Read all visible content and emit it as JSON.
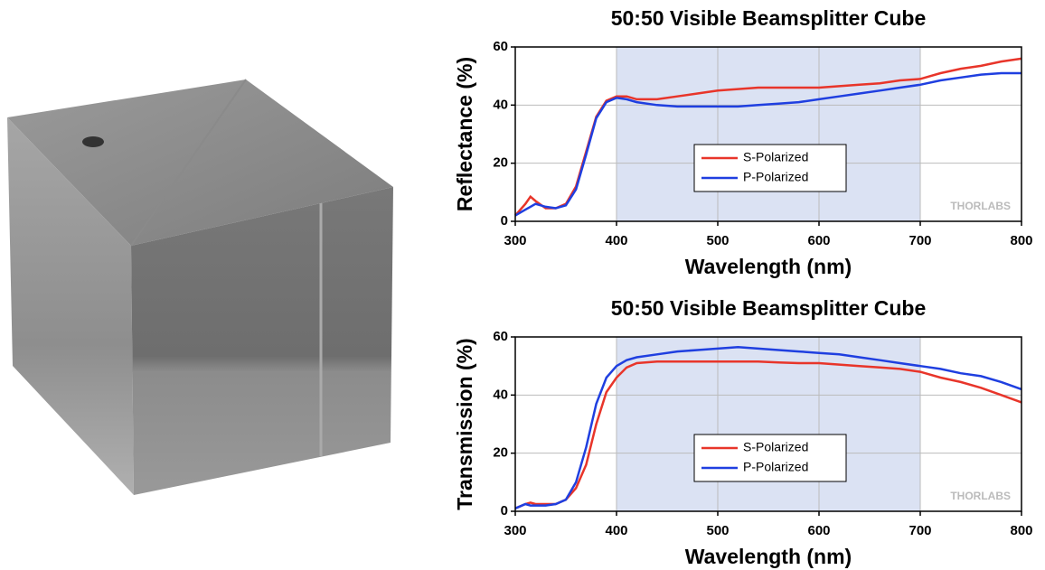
{
  "chart_data": [
    {
      "type": "line",
      "title": "50:50 Visible Beamsplitter Cube",
      "x_label": "Wavelength (nm)",
      "y_label": "Reflectance (%)",
      "x": [
        300,
        310,
        315,
        320,
        330,
        340,
        350,
        360,
        370,
        380,
        390,
        400,
        410,
        420,
        440,
        460,
        480,
        500,
        520,
        540,
        560,
        580,
        600,
        620,
        640,
        660,
        680,
        700,
        720,
        740,
        760,
        780,
        800
      ],
      "series": [
        {
          "name": "S-Polarized",
          "color": "#e8352a",
          "values": [
            2,
            6,
            8.5,
            7,
            4.5,
            4.5,
            6,
            12,
            24,
            36,
            41.5,
            43,
            43,
            42,
            42,
            43,
            44,
            45,
            45.5,
            46,
            46,
            46,
            46,
            46.5,
            47,
            47.5,
            48.5,
            49,
            51,
            52.5,
            53.5,
            55,
            56
          ]
        },
        {
          "name": "P-Polarized",
          "color": "#1f3fe0",
          "values": [
            2,
            4,
            5,
            6,
            5,
            4.5,
            5.5,
            11,
            23,
            35.5,
            41,
            42.5,
            42,
            41,
            40,
            39.5,
            39.5,
            39.5,
            39.5,
            40,
            40.5,
            41,
            42,
            43,
            44,
            45,
            46,
            47,
            48.5,
            49.5,
            50.5,
            51,
            51
          ]
        }
      ],
      "shaded_range": [
        400,
        700
      ],
      "shade_color": "#dbe2f3",
      "xlim": [
        300,
        800
      ],
      "xticks": [
        300,
        400,
        500,
        600,
        700,
        800
      ],
      "ylim": [
        0,
        60
      ],
      "yticks": [
        0,
        20,
        40,
        60
      ],
      "grid": true,
      "watermark": "THORLABS"
    },
    {
      "type": "line",
      "title": "50:50 Visible Beamsplitter Cube",
      "x_label": "Wavelength (nm)",
      "y_label": "Transmission (%)",
      "x": [
        300,
        310,
        315,
        320,
        330,
        340,
        350,
        360,
        370,
        380,
        390,
        400,
        410,
        420,
        440,
        460,
        480,
        500,
        520,
        540,
        560,
        580,
        600,
        620,
        640,
        660,
        680,
        700,
        720,
        740,
        760,
        780,
        800
      ],
      "series": [
        {
          "name": "S-Polarized",
          "color": "#e8352a",
          "values": [
            1,
            2.5,
            3,
            2.5,
            2.5,
            2.5,
            4,
            8,
            16,
            30,
            41,
            46,
            49.5,
            51,
            51.5,
            51.5,
            51.5,
            51.5,
            51.5,
            51.5,
            51.2,
            51,
            51,
            50.5,
            50,
            49.5,
            49,
            48,
            46,
            44.5,
            42.5,
            40,
            37.5
          ]
        },
        {
          "name": "P-Polarized",
          "color": "#1f3fe0",
          "values": [
            1,
            2.5,
            2,
            2,
            2,
            2.5,
            4,
            10,
            22,
            37,
            46,
            50,
            52,
            53,
            54,
            55,
            55.5,
            56,
            56.5,
            56,
            55.5,
            55,
            54.5,
            54,
            53,
            52,
            51,
            50,
            49,
            47.5,
            46.5,
            44.5,
            42
          ]
        }
      ],
      "shaded_range": [
        400,
        700
      ],
      "shade_color": "#dbe2f3",
      "xlim": [
        300,
        800
      ],
      "xticks": [
        300,
        400,
        500,
        600,
        700,
        800
      ],
      "ylim": [
        0,
        60
      ],
      "yticks": [
        0,
        20,
        40,
        60
      ],
      "grid": true,
      "watermark": "THORLABS"
    }
  ]
}
